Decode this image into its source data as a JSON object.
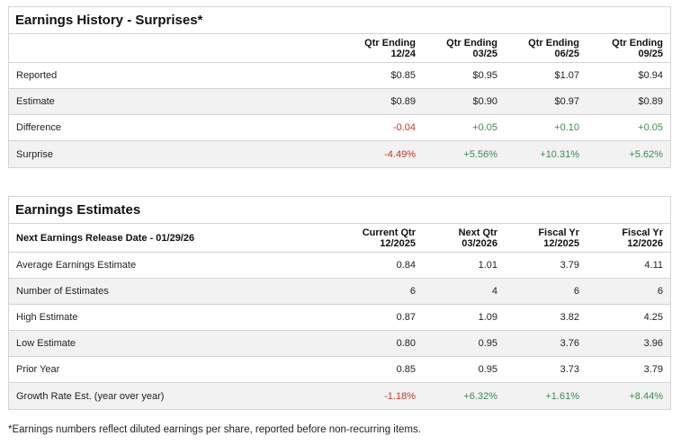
{
  "history": {
    "title": "Earnings History - Surprises*",
    "header_label": "",
    "columns": [
      {
        "line1": "Qtr Ending",
        "line2": "12/24"
      },
      {
        "line1": "Qtr Ending",
        "line2": "03/25"
      },
      {
        "line1": "Qtr Ending",
        "line2": "06/25"
      },
      {
        "line1": "Qtr Ending",
        "line2": "09/25"
      }
    ],
    "rows": [
      {
        "label": "Reported",
        "values": [
          "$0.85",
          "$0.95",
          "$1.07",
          "$0.94"
        ]
      },
      {
        "label": "Estimate",
        "values": [
          "$0.89",
          "$0.90",
          "$0.97",
          "$0.89"
        ]
      },
      {
        "label": "Difference",
        "values": [
          "-0.04",
          "+0.05",
          "+0.10",
          "+0.05"
        ]
      },
      {
        "label": "Surprise",
        "values": [
          "-4.49%",
          "+5.56%",
          "+10.31%",
          "+5.62%"
        ]
      }
    ]
  },
  "estimates": {
    "title": "Earnings Estimates",
    "header_label": "Next Earnings Release Date - 01/29/26",
    "columns": [
      {
        "line1": "Current Qtr",
        "line2": "12/2025"
      },
      {
        "line1": "Next Qtr",
        "line2": "03/2026"
      },
      {
        "line1": "Fiscal Yr",
        "line2": "12/2025"
      },
      {
        "line1": "Fiscal Yr",
        "line2": "12/2026"
      }
    ],
    "rows": [
      {
        "label": "Average Earnings Estimate",
        "values": [
          "0.84",
          "1.01",
          "3.79",
          "4.11"
        ]
      },
      {
        "label": "Number of Estimates",
        "values": [
          "6",
          "4",
          "6",
          "6"
        ]
      },
      {
        "label": "High Estimate",
        "values": [
          "0.87",
          "1.09",
          "3.82",
          "4.25"
        ]
      },
      {
        "label": "Low Estimate",
        "values": [
          "0.80",
          "0.95",
          "3.76",
          "3.96"
        ]
      },
      {
        "label": "Prior Year",
        "values": [
          "0.85",
          "0.95",
          "3.73",
          "3.79"
        ]
      },
      {
        "label": "Growth Rate Est. (year over year)",
        "values": [
          "-1.18%",
          "+6.32%",
          "+1.61%",
          "+8.44%"
        ]
      }
    ]
  },
  "colors": {
    "negative": "#c0392b",
    "positive": "#3d8b55"
  },
  "footnote": "*Earnings numbers reflect diluted earnings per share, reported before non-recurring items."
}
